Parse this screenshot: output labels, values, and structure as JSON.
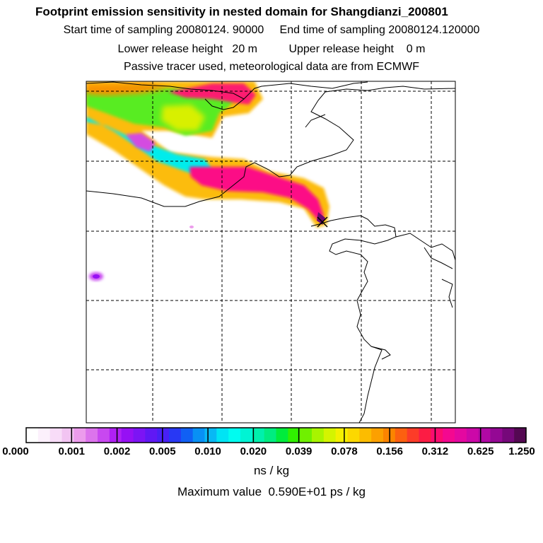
{
  "titles": {
    "line1": "Footprint emission sensitivity in nested domain for Shangdianzi_200801",
    "line2": "Start time of sampling 20080124. 90000     End time of sampling 20080124.120000",
    "line3": "Lower release height   20 m          Upper release height    0 m",
    "line4": "Passive tracer used, meteorological data are from ECMWF"
  },
  "colorbar": {
    "tick_labels": [
      "0.000",
      "0.001",
      "0.002",
      "0.005",
      "0.010",
      "0.020",
      "0.039",
      "0.078",
      "0.156",
      "0.312",
      "0.625",
      "1.250"
    ],
    "colors": [
      "#ffffff",
      "#fcf0fc",
      "#f8dcf8",
      "#f2c4f2",
      "#ec9cec",
      "#dc74ec",
      "#c848f0",
      "#b020f4",
      "#9610f4",
      "#7c14f4",
      "#6018f4",
      "#4820f4",
      "#2838f4",
      "#1060f4",
      "#0890f4",
      "#08b8f4",
      "#00e4f4",
      "#00fcf0",
      "#00f4d4",
      "#00f0ac",
      "#00ec80",
      "#00ec3c",
      "#30f000",
      "#70f000",
      "#a8f400",
      "#d4f400",
      "#f4f000",
      "#fcd800",
      "#fcbc00",
      "#fca000",
      "#fc8400",
      "#fc6010",
      "#fc3c28",
      "#fc1c44",
      "#fc0c70",
      "#f40890",
      "#e408a0",
      "#cc08a8",
      "#b008a4",
      "#940894",
      "#76087a",
      "#540852"
    ],
    "units": "ns / kg"
  },
  "max_value": "Maximum value  0.590E+01 ps / kg"
}
